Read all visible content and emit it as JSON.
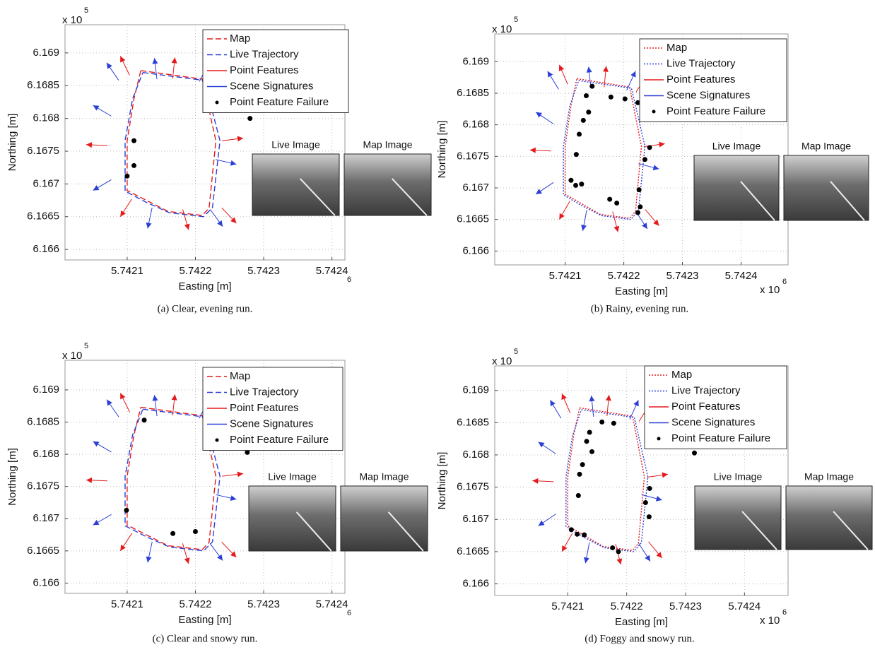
{
  "chart_data": [
    {
      "type": "line",
      "caption": "(a) Clear, evening run.",
      "xlabel": "Easting [m]",
      "ylabel": "Northing [m]",
      "y_multiplier": {
        "base": "x 10",
        "exponent": "5"
      },
      "x_multiplier": {
        "exponent": "6"
      },
      "xlim": [
        5.742009,
        5.742419
      ],
      "ylim": [
        6.16584,
        6.16943
      ],
      "xticks": [
        5.7421,
        5.7422,
        5.7423,
        5.7424
      ],
      "yticks": [
        6.166,
        6.1665,
        6.167,
        6.1675,
        6.168,
        6.1685,
        6.169
      ],
      "grid": true,
      "images": [
        "Live Image",
        "Map Image"
      ],
      "series": [
        {
          "name": "Map",
          "color": "#e41a1c",
          "style": "dashed",
          "x": [
            5.74212,
            5.74221,
            5.74223,
            5.74222,
            5.74221,
            5.74216,
            5.74213,
            5.7421,
            5.7421,
            5.74211,
            5.74212
          ],
          "values": [
            6.16873,
            6.1686,
            6.16766,
            6.16663,
            6.16652,
            6.16658,
            6.16674,
            6.1669,
            6.16766,
            6.1683,
            6.16873
          ]
        },
        {
          "name": "Live Trajectory",
          "color": "#2b3fd6",
          "style": "dashed",
          "x": [
            5.742123,
            5.742213,
            5.742236,
            5.742225,
            5.742212,
            5.742162,
            5.742128,
            5.742097,
            5.742097,
            5.742108,
            5.742123
          ],
          "values": [
            6.1687,
            6.16858,
            6.16766,
            6.16664,
            6.1665,
            6.16656,
            6.16672,
            6.16689,
            6.16766,
            6.1683,
            6.1687
          ]
        },
        {
          "name": "Point Features",
          "color": "#e41a1c",
          "style": "arrows",
          "x": [
            5.74209,
            5.74217,
            5.74224,
            5.74227,
            5.74226,
            5.74219,
            5.74209,
            5.74204
          ],
          "values": [
            6.16895,
            6.16893,
            6.1688,
            6.1677,
            6.1664,
            6.1663,
            6.1665,
            6.1676
          ]
        },
        {
          "name": "Scene Signatures",
          "color": "#2b3fd6",
          "style": "arrows",
          "x": [
            5.74207,
            5.74214,
            5.74222,
            5.74226,
            5.74224,
            5.74213,
            5.74205,
            5.74205
          ],
          "values": [
            6.16885,
            6.16892,
            6.16885,
            6.1673,
            6.16635,
            6.16632,
            6.1669,
            6.1682
          ]
        },
        {
          "name": "Point Feature Failure",
          "color": "#000000",
          "style": "points",
          "x": [
            5.74211,
            5.74211,
            5.7421,
            5.74228
          ],
          "values": [
            6.16766,
            6.16728,
            6.16712,
            6.168
          ]
        }
      ]
    },
    {
      "type": "line",
      "caption": "(b) Rainy, evening run.",
      "xlabel": "Easting [m]",
      "ylabel": "Northing [m]",
      "y_multiplier": {
        "base": "x 10",
        "exponent": "5"
      },
      "x_multiplier": {
        "base": "x 10",
        "exponent": "6"
      },
      "xlim": [
        5.74198,
        5.74248
      ],
      "ylim": [
        6.16578,
        6.16944
      ],
      "xticks": [
        5.7421,
        5.7422,
        5.7423,
        5.7424
      ],
      "yticks": [
        6.166,
        6.1665,
        6.167,
        6.1675,
        6.168,
        6.1685,
        6.169
      ],
      "grid": true,
      "images": [
        "Live Image",
        "Map Image"
      ],
      "series": [
        {
          "name": "Map",
          "color": "#e41a1c",
          "style": "dotted",
          "x": [
            5.74212,
            5.74221,
            5.74223,
            5.74222,
            5.74221,
            5.74216,
            5.74213,
            5.7421,
            5.7421,
            5.74211,
            5.74212
          ],
          "values": [
            6.16873,
            6.1686,
            6.16766,
            6.16663,
            6.16652,
            6.16658,
            6.16674,
            6.1669,
            6.16766,
            6.1683,
            6.16873
          ]
        },
        {
          "name": "Live Trajectory",
          "color": "#2b3fd6",
          "style": "dotted",
          "x": [
            5.742123,
            5.742213,
            5.742236,
            5.742225,
            5.742212,
            5.742162,
            5.742128,
            5.742097,
            5.742097,
            5.742108,
            5.742123
          ],
          "values": [
            6.1687,
            6.16858,
            6.16766,
            6.16664,
            6.1665,
            6.16656,
            6.16672,
            6.16689,
            6.16766,
            6.1683,
            6.1687
          ]
        },
        {
          "name": "Point Features",
          "color": "#e41a1c",
          "style": "arrows",
          "x": [
            5.74209,
            5.74217,
            5.74224,
            5.74227,
            5.74226,
            5.74219,
            5.74209,
            5.74204
          ],
          "values": [
            6.16895,
            6.16893,
            6.1688,
            6.1677,
            6.1664,
            6.1663,
            6.1665,
            6.1676
          ]
        },
        {
          "name": "Scene Signatures",
          "color": "#2b3fd6",
          "style": "arrows",
          "x": [
            5.74207,
            5.74214,
            5.74222,
            5.74226,
            5.74224,
            5.74213,
            5.74205,
            5.74205
          ],
          "values": [
            6.16885,
            6.16892,
            6.16885,
            6.1673,
            6.16635,
            6.16632,
            6.1669,
            6.1682
          ]
        },
        {
          "name": "Point Feature Failure",
          "color": "#000000",
          "style": "points",
          "x": [
            5.742146,
            5.742136,
            5.74214,
            5.742131,
            5.742124,
            5.742119,
            5.74211,
            5.742118,
            5.742128,
            5.742178,
            5.742202,
            5.742224,
            5.742244,
            5.742236,
            5.742226,
            5.742228,
            5.742224,
            5.742176,
            5.742188
          ],
          "values": [
            6.16861,
            6.16846,
            6.1682,
            6.16807,
            6.16785,
            6.16753,
            6.16712,
            6.16704,
            6.16706,
            6.16844,
            6.16841,
            6.16835,
            6.16764,
            6.16745,
            6.16697,
            6.1667,
            6.16661,
            6.16682,
            6.16676
          ]
        }
      ]
    },
    {
      "type": "line",
      "caption": "(c) Clear and snowy run.",
      "xlabel": "Easting [m]",
      "ylabel": "Northing [m]",
      "y_multiplier": {
        "base": "x 10",
        "exponent": "5"
      },
      "x_multiplier": {
        "exponent": "6"
      },
      "xlim": [
        5.742009,
        5.742419
      ],
      "ylim": [
        6.16584,
        6.16946
      ],
      "xticks": [
        5.7421,
        5.7422,
        5.7423,
        5.7424
      ],
      "yticks": [
        6.166,
        6.1665,
        6.167,
        6.1675,
        6.168,
        6.1685,
        6.169
      ],
      "grid": true,
      "images": [
        "Live Image",
        "Map Image"
      ],
      "series": [
        {
          "name": "Map",
          "color": "#e41a1c",
          "style": "dashed",
          "x": [
            5.74212,
            5.74221,
            5.74223,
            5.74222,
            5.74221,
            5.74216,
            5.74213,
            5.7421,
            5.7421,
            5.74211,
            5.74212
          ],
          "values": [
            6.16873,
            6.1686,
            6.16766,
            6.16663,
            6.16652,
            6.16658,
            6.16674,
            6.1669,
            6.16766,
            6.1683,
            6.16873
          ]
        },
        {
          "name": "Live Trajectory",
          "color": "#2b3fd6",
          "style": "dashed",
          "x": [
            5.742123,
            5.742213,
            5.742236,
            5.742225,
            5.742212,
            5.742162,
            5.742128,
            5.742097,
            5.742097,
            5.742108,
            5.742123
          ],
          "values": [
            6.1687,
            6.16858,
            6.16766,
            6.16664,
            6.1665,
            6.16656,
            6.16672,
            6.16689,
            6.16766,
            6.1683,
            6.1687
          ]
        },
        {
          "name": "Point Features",
          "color": "#e41a1c",
          "style": "arrows",
          "x": [
            5.74209,
            5.74217,
            5.74224,
            5.74227,
            5.74226,
            5.74219,
            5.74209,
            5.74204
          ],
          "values": [
            6.16895,
            6.16893,
            6.1688,
            6.1677,
            6.1664,
            6.1663,
            6.1665,
            6.1676
          ]
        },
        {
          "name": "Scene Signatures",
          "color": "#2b3fd6",
          "style": "arrows",
          "x": [
            5.74207,
            5.74214,
            5.74222,
            5.74226,
            5.74224,
            5.74213,
            5.74205,
            5.74205
          ],
          "values": [
            6.16885,
            6.16892,
            6.16885,
            6.1673,
            6.16635,
            6.16632,
            6.1669,
            6.1682
          ]
        },
        {
          "name": "Point Feature Failure",
          "color": "#000000",
          "style": "points",
          "x": [
            5.742125,
            5.742099,
            5.742167,
            5.7422,
            5.742276
          ],
          "values": [
            6.16853,
            6.16713,
            6.16677,
            6.1668,
            6.16803
          ]
        }
      ]
    },
    {
      "type": "line",
      "caption": "(d) Foggy and snowy run.",
      "xlabel": "Easting [m]",
      "ylabel": "Northing [m]",
      "y_multiplier": {
        "base": "x 10",
        "exponent": "5"
      },
      "x_multiplier": {
        "base": "x 10",
        "exponent": "6"
      },
      "xlim": [
        5.741976,
        5.742474
      ],
      "ylim": [
        6.16582,
        6.16938
      ],
      "xticks": [
        5.7421,
        5.7422,
        5.7423,
        5.7424
      ],
      "yticks": [
        6.166,
        6.1665,
        6.167,
        6.1675,
        6.168,
        6.1685,
        6.169
      ],
      "grid": true,
      "images": [
        "Live Image",
        "Map Image"
      ],
      "series": [
        {
          "name": "Map",
          "color": "#e41a1c",
          "style": "dotted",
          "x": [
            5.74212,
            5.74221,
            5.74223,
            5.74222,
            5.74221,
            5.74216,
            5.74213,
            5.7421,
            5.7421,
            5.74211,
            5.74212
          ],
          "values": [
            6.16873,
            6.1686,
            6.16766,
            6.16663,
            6.16652,
            6.16658,
            6.16674,
            6.1669,
            6.16766,
            6.1683,
            6.16873
          ]
        },
        {
          "name": "Live Trajectory",
          "color": "#2b3fd6",
          "style": "dotted",
          "x": [
            5.742123,
            5.742213,
            5.742236,
            5.742225,
            5.742212,
            5.742162,
            5.742128,
            5.742097,
            5.742097,
            5.742108,
            5.742123
          ],
          "values": [
            6.1687,
            6.16858,
            6.16766,
            6.16664,
            6.1665,
            6.16656,
            6.16672,
            6.16689,
            6.16766,
            6.1683,
            6.1687
          ]
        },
        {
          "name": "Point Features",
          "color": "#e41a1c",
          "style": "arrows",
          "x": [
            5.74209,
            5.74217,
            5.74224,
            5.74227,
            5.74226,
            5.74219,
            5.74209,
            5.74204
          ],
          "values": [
            6.16895,
            6.16893,
            6.1688,
            6.1677,
            6.1664,
            6.1663,
            6.1665,
            6.1676
          ]
        },
        {
          "name": "Scene Signatures",
          "color": "#2b3fd6",
          "style": "arrows",
          "x": [
            5.74207,
            5.74214,
            5.74222,
            5.74226,
            5.74224,
            5.74213,
            5.74205,
            5.74205
          ],
          "values": [
            6.16885,
            6.16892,
            6.16885,
            6.1673,
            6.16635,
            6.16632,
            6.1669,
            6.1682
          ]
        },
        {
          "name": "Point Feature Failure",
          "color": "#000000",
          "style": "points",
          "x": [
            5.742137,
            5.742132,
            5.742141,
            5.742125,
            5.74212,
            5.742118,
            5.742106,
            5.742116,
            5.742128,
            5.742158,
            5.742178,
            5.742239,
            5.742232,
            5.742238,
            5.742176,
            5.742186,
            5.742315
          ],
          "values": [
            6.16835,
            6.16821,
            6.16805,
            6.16785,
            6.1677,
            6.16737,
            6.16684,
            6.16677,
            6.16676,
            6.16851,
            6.16849,
            6.16748,
            6.16726,
            6.16704,
            6.16656,
            6.1665,
            6.16803
          ]
        }
      ]
    }
  ]
}
